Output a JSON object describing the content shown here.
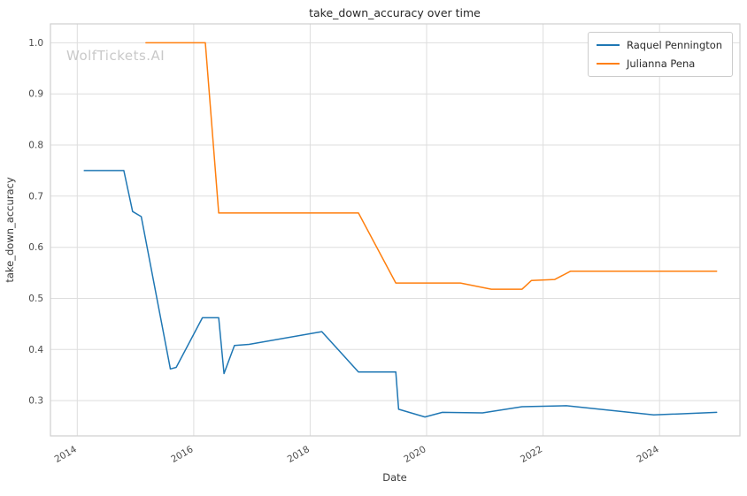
{
  "watermark": "WolfTickets.AI",
  "chart_data": {
    "type": "line",
    "title": "take_down_accuracy over time",
    "xlabel": "Date",
    "ylabel": "take_down_accuracy",
    "xlim": [
      2013.54,
      2025.38
    ],
    "ylim": [
      0.231,
      1.037
    ],
    "x_ticks": [
      2014,
      2016,
      2018,
      2020,
      2022,
      2024
    ],
    "y_ticks": [
      0.3,
      0.4,
      0.5,
      0.6,
      0.7,
      0.8,
      0.9,
      1.0
    ],
    "grid": true,
    "legend_position": "upper right",
    "series": [
      {
        "name": "Raquel Pennington",
        "color": "#1f77b4",
        "points": [
          [
            2014.12,
            0.75
          ],
          [
            2014.8,
            0.75
          ],
          [
            2014.95,
            0.67
          ],
          [
            2015.1,
            0.66
          ],
          [
            2015.6,
            0.362
          ],
          [
            2015.7,
            0.365
          ],
          [
            2016.15,
            0.462
          ],
          [
            2016.43,
            0.462
          ],
          [
            2016.52,
            0.353
          ],
          [
            2016.7,
            0.408
          ],
          [
            2016.95,
            0.41
          ],
          [
            2018.2,
            0.435
          ],
          [
            2018.83,
            0.356
          ],
          [
            2019.47,
            0.356
          ],
          [
            2019.52,
            0.283
          ],
          [
            2019.97,
            0.268
          ],
          [
            2020.27,
            0.277
          ],
          [
            2020.96,
            0.276
          ],
          [
            2021.64,
            0.288
          ],
          [
            2022.4,
            0.29
          ],
          [
            2023.9,
            0.272
          ],
          [
            2024.98,
            0.277
          ]
        ]
      },
      {
        "name": "Julianna Pena",
        "color": "#ff7f0e",
        "points": [
          [
            2015.18,
            1.0
          ],
          [
            2016.2,
            1.0
          ],
          [
            2016.43,
            0.667
          ],
          [
            2018.83,
            0.667
          ],
          [
            2019.47,
            0.53
          ],
          [
            2020.58,
            0.53
          ],
          [
            2021.11,
            0.518
          ],
          [
            2021.64,
            0.518
          ],
          [
            2021.8,
            0.535
          ],
          [
            2022.2,
            0.537
          ],
          [
            2022.47,
            0.553
          ],
          [
            2024.98,
            0.553
          ]
        ]
      }
    ]
  }
}
